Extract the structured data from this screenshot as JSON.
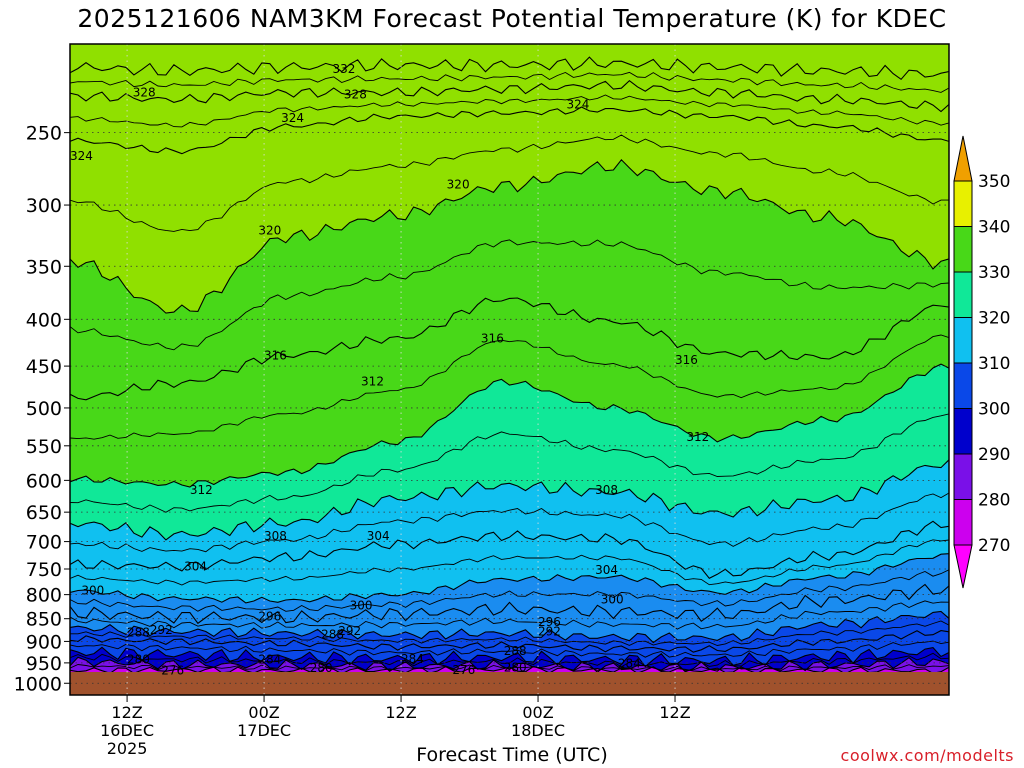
{
  "title": "2025121606 NAM3KM Forecast Potential Temperature (K) for KDEC",
  "credit": "coolwx.com/modelts",
  "chart_data": {
    "type": "heatmap",
    "title": "2025121606 NAM3KM Forecast Potential Temperature (K) for KDEC",
    "xlabel": "Forecast Time (UTC)",
    "ylabel": "",
    "x_range_hours_from_00Z_16DEC": [
      7,
      84
    ],
    "x_ticks": [
      {
        "hour": 12,
        "label": "12Z",
        "sub1": "16DEC",
        "sub2": "2025"
      },
      {
        "hour": 24,
        "label": "00Z",
        "sub1": "17DEC",
        "sub2": ""
      },
      {
        "hour": 36,
        "label": "12Z",
        "sub1": "",
        "sub2": ""
      },
      {
        "hour": 48,
        "label": "00Z",
        "sub1": "18DEC",
        "sub2": ""
      },
      {
        "hour": 60,
        "label": "12Z",
        "sub1": "",
        "sub2": ""
      }
    ],
    "y_scale": "log-pressure",
    "y_range_hPa": [
      1030,
      200
    ],
    "y_ticks": [
      250,
      300,
      350,
      400,
      450,
      500,
      550,
      600,
      650,
      700,
      750,
      800,
      850,
      900,
      950,
      1000
    ],
    "colorbar_ticks": [
      270,
      280,
      290,
      300,
      310,
      320,
      330,
      340,
      350
    ],
    "colorbar_colors": [
      "#ff00ff",
      "#cc00ee",
      "#7a10e8",
      "#0000cc",
      "#0a48e8",
      "#1a8cf0",
      "#10c0f0",
      "#10e898",
      "#48d818",
      "#90e000",
      "#e8f000",
      "#f0a000"
    ],
    "contour_interval_K": 4,
    "series": [
      {
        "name": "276",
        "p": [
          968,
          967,
          969,
          968,
          966,
          967,
          968,
          968,
          969
        ]
      },
      {
        "name": "280",
        "p": [
          947,
          954,
          955,
          958,
          956,
          960,
          961,
          955,
          948
        ]
      },
      {
        "name": "284",
        "p": [
          925,
          930,
          937,
          940,
          937,
          942,
          945,
          935,
          922
        ]
      },
      {
        "name": "288",
        "p": [
          894,
          900,
          905,
          912,
          909,
          916,
          918,
          900,
          880
        ]
      },
      {
        "name": "292",
        "p": [
          870,
          878,
          882,
          885,
          882,
          890,
          892,
          862,
          840
        ]
      },
      {
        "name": "296",
        "p": [
          838,
          846,
          848,
          840,
          830,
          835,
          842,
          812,
          790
        ]
      },
      {
        "name": "300",
        "p": [
          792,
          808,
          812,
          800,
          770,
          765,
          796,
          765,
          725
        ]
      },
      {
        "name": "304",
        "p": [
          742,
          745,
          728,
          705,
          690,
          695,
          760,
          725,
          670
        ]
      },
      {
        "name": "308",
        "p": [
          668,
          688,
          668,
          628,
          608,
          618,
          652,
          630,
          575
        ]
      },
      {
        "name": "312",
        "p": [
          598,
          606,
          588,
          545,
          468,
          500,
          540,
          515,
          450
        ]
      },
      {
        "name": "316",
        "p": [
          488,
          470,
          438,
          420,
          380,
          402,
          436,
          440,
          385
        ]
      },
      {
        "name": "320",
        "p": [
          345,
          392,
          325,
          308,
          286,
          272,
          290,
          310,
          348
        ]
      },
      {
        "name": "324",
        "p": [
          255,
          262,
          246,
          240,
          238,
          236,
          240,
          246,
          255
        ]
      },
      {
        "name": "328",
        "p": [
          228,
          230,
          226,
          226,
          224,
          222,
          226,
          230,
          234
        ]
      },
      {
        "name": "332",
        "p": [
          212,
          214,
          212,
          211,
          211,
          210,
          212,
          214,
          216
        ]
      }
    ],
    "series_x_hours": [
      7,
      16.5,
      26,
      35.5,
      45,
      54.5,
      64,
      73.5,
      84
    ],
    "contour_labels": [
      {
        "text": "332",
        "hour": 31,
        "p": 213
      },
      {
        "text": "328",
        "hour": 13.5,
        "p": 226
      },
      {
        "text": "328",
        "hour": 32,
        "p": 227
      },
      {
        "text": "324",
        "hour": 26.5,
        "p": 241
      },
      {
        "text": "324",
        "hour": 8,
        "p": 265
      },
      {
        "text": "324",
        "hour": 51.5,
        "p": 233
      },
      {
        "text": "320",
        "hour": 41,
        "p": 285
      },
      {
        "text": "320",
        "hour": 24.5,
        "p": 320
      },
      {
        "text": "316",
        "hour": 44,
        "p": 420
      },
      {
        "text": "316",
        "hour": 25,
        "p": 438
      },
      {
        "text": "316",
        "hour": 61,
        "p": 443
      },
      {
        "text": "312",
        "hour": 33.5,
        "p": 468
      },
      {
        "text": "312",
        "hour": 62,
        "p": 538
      },
      {
        "text": "312",
        "hour": 18.5,
        "p": 615
      },
      {
        "text": "308",
        "hour": 25,
        "p": 690
      },
      {
        "text": "308",
        "hour": 54,
        "p": 615
      },
      {
        "text": "304",
        "hour": 34,
        "p": 690
      },
      {
        "text": "304",
        "hour": 18,
        "p": 745
      },
      {
        "text": "304",
        "hour": 54,
        "p": 752
      },
      {
        "text": "300",
        "hour": 9,
        "p": 792
      },
      {
        "text": "300",
        "hour": 32.5,
        "p": 822
      },
      {
        "text": "300",
        "hour": 54.5,
        "p": 810
      },
      {
        "text": "296",
        "hour": 24.5,
        "p": 845
      },
      {
        "text": "296",
        "hour": 49,
        "p": 857
      },
      {
        "text": "292",
        "hour": 15,
        "p": 875
      },
      {
        "text": "292",
        "hour": 31.5,
        "p": 877
      },
      {
        "text": "292",
        "hour": 49,
        "p": 878
      },
      {
        "text": "288",
        "hour": 13,
        "p": 880
      },
      {
        "text": "288",
        "hour": 30,
        "p": 884
      },
      {
        "text": "288",
        "hour": 46,
        "p": 922
      },
      {
        "text": "284",
        "hour": 24.5,
        "p": 942
      },
      {
        "text": "284",
        "hour": 37,
        "p": 941
      },
      {
        "text": "284",
        "hour": 56,
        "p": 951
      },
      {
        "text": "280",
        "hour": 13,
        "p": 942
      },
      {
        "text": "280",
        "hour": 29,
        "p": 962
      },
      {
        "text": "280",
        "hour": 46,
        "p": 961
      },
      {
        "text": "276",
        "hour": 16,
        "p": 968
      },
      {
        "text": "276",
        "hour": 41.5,
        "p": 967
      }
    ]
  }
}
